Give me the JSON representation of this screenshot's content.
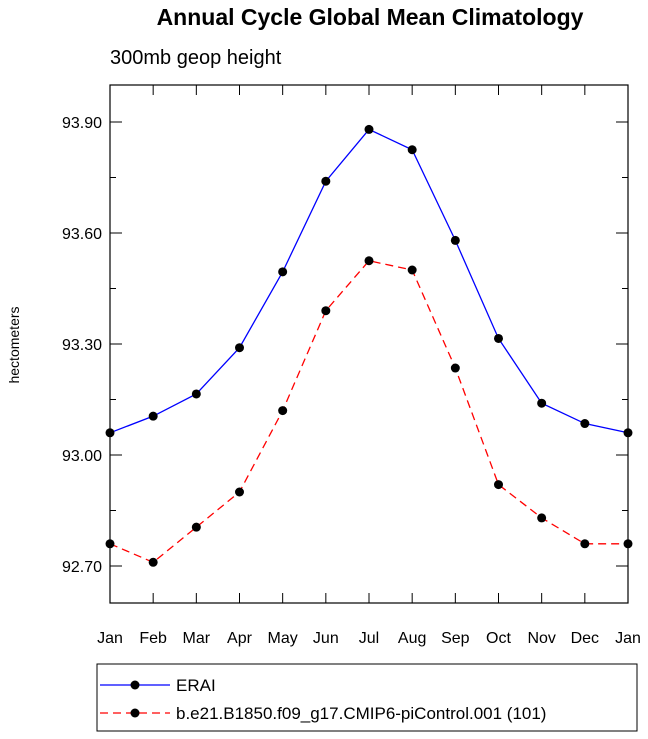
{
  "chart_data": {
    "type": "line",
    "title": "Annual Cycle Global Mean Climatology",
    "subtitle": "300mb geop height",
    "ylabel": "hectometers",
    "xlabel": "",
    "categories": [
      "Jan",
      "Feb",
      "Mar",
      "Apr",
      "May",
      "Jun",
      "Jul",
      "Aug",
      "Sep",
      "Oct",
      "Nov",
      "Dec",
      "Jan"
    ],
    "ylim": [
      92.6,
      94.0
    ],
    "yticks": [
      92.7,
      93.0,
      93.3,
      93.6,
      93.9
    ],
    "ytick_labels": [
      "92.70",
      "93.00",
      "93.30",
      "93.60",
      "93.90"
    ],
    "grid": false,
    "legend_position": "bottom",
    "series": [
      {
        "name": "ERAI",
        "color": "#0000ff",
        "dash": "solid",
        "marker": "circle",
        "values": [
          93.06,
          93.105,
          93.165,
          93.29,
          93.495,
          93.74,
          93.88,
          93.825,
          93.58,
          93.315,
          93.14,
          93.085,
          93.06
        ]
      },
      {
        "name": "b.e21.B1850.f09_g17.CMIP6-piControl.001 (101)",
        "color": "#ff0000",
        "dash": "dashed",
        "marker": "circle",
        "values": [
          92.76,
          92.71,
          92.805,
          92.9,
          93.12,
          93.39,
          93.525,
          93.5,
          93.235,
          92.92,
          92.83,
          92.76,
          92.76
        ]
      }
    ]
  }
}
